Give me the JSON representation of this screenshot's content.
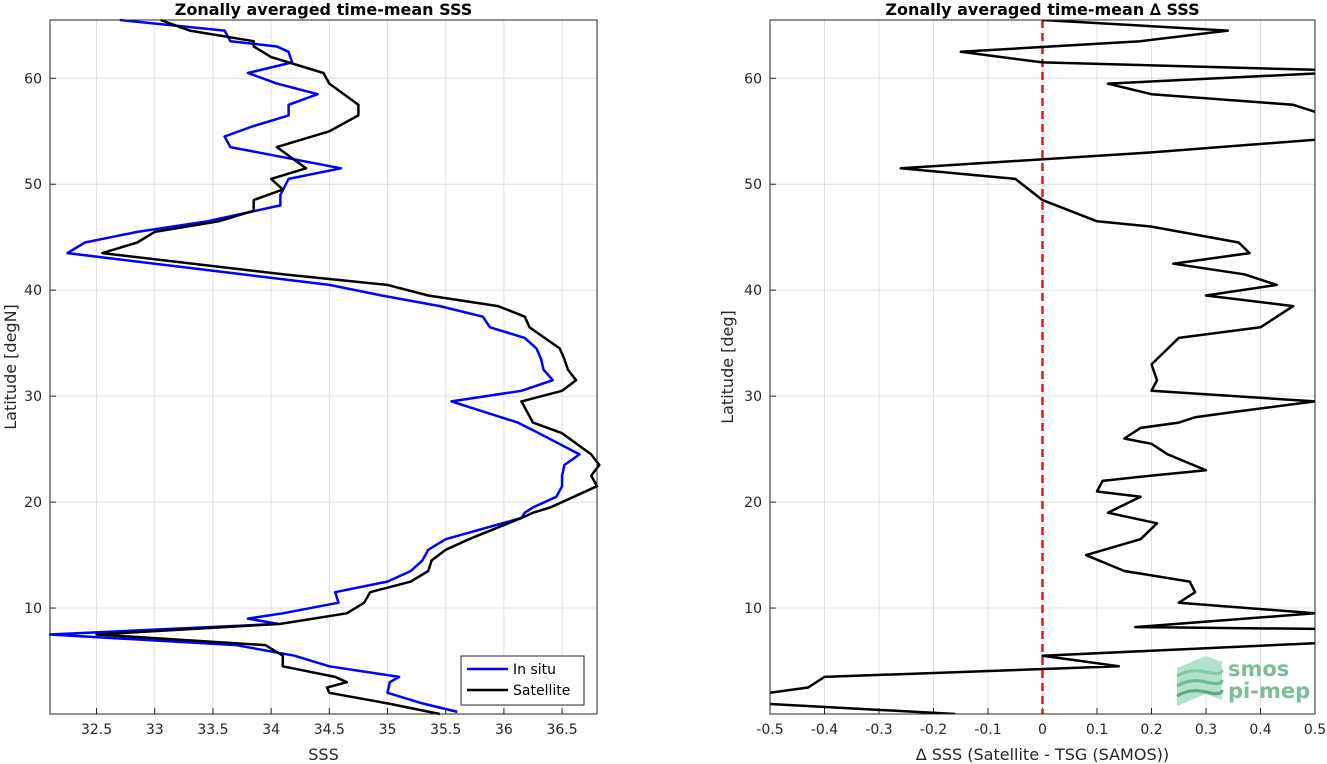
{
  "chart_data": [
    {
      "type": "line",
      "title": "Zonally averaged time-mean SSS",
      "xlabel": "SSS",
      "ylabel": "Latitude [degN]",
      "xlim": [
        32.1,
        36.8
      ],
      "ylim": [
        0,
        65.5
      ],
      "xticks": [
        32.5,
        33,
        33.5,
        34,
        34.5,
        35,
        35.5,
        36,
        36.5
      ],
      "yticks": [
        10,
        20,
        30,
        40,
        50,
        60
      ],
      "grid": true,
      "legend": "bottom-right",
      "series": [
        {
          "name": "In situ",
          "color": "#0000ff",
          "points": [
            [
              35.6,
              0.2
            ],
            [
              35.3,
              1.0
            ],
            [
              35.0,
              2.0
            ],
            [
              35.02,
              3.0
            ],
            [
              35.1,
              3.5
            ],
            [
              34.5,
              4.5
            ],
            [
              34.2,
              5.5
            ],
            [
              33.7,
              6.5
            ],
            [
              32.1,
              7.5
            ],
            [
              34.06,
              8.5
            ],
            [
              33.8,
              9.0
            ],
            [
              34.1,
              9.5
            ],
            [
              34.58,
              10.5
            ],
            [
              34.55,
              11.5
            ],
            [
              35.0,
              12.5
            ],
            [
              35.2,
              13.5
            ],
            [
              35.3,
              14.5
            ],
            [
              35.35,
              15.5
            ],
            [
              35.5,
              16.5
            ],
            [
              36.15,
              18.5
            ],
            [
              36.18,
              19.0
            ],
            [
              36.25,
              19.5
            ],
            [
              36.45,
              20.5
            ],
            [
              36.5,
              21.5
            ],
            [
              36.5,
              22.5
            ],
            [
              36.52,
              23.5
            ],
            [
              36.65,
              24.5
            ],
            [
              36.3,
              26.5
            ],
            [
              36.12,
              27.5
            ],
            [
              35.55,
              29.5
            ],
            [
              36.15,
              30.5
            ],
            [
              36.42,
              31.5
            ],
            [
              36.34,
              32.5
            ],
            [
              36.32,
              33.5
            ],
            [
              36.28,
              34.5
            ],
            [
              36.18,
              35.5
            ],
            [
              35.88,
              36.5
            ],
            [
              35.82,
              37.5
            ],
            [
              35.45,
              38.5
            ],
            [
              34.95,
              39.5
            ],
            [
              34.5,
              40.5
            ],
            [
              33.75,
              41.5
            ],
            [
              32.25,
              43.5
            ],
            [
              32.4,
              44.5
            ],
            [
              32.85,
              45.5
            ],
            [
              33.45,
              46.5
            ],
            [
              34.08,
              48.0
            ],
            [
              34.08,
              49.0
            ],
            [
              34.15,
              50.5
            ],
            [
              34.6,
              51.5
            ],
            [
              33.65,
              53.5
            ],
            [
              33.6,
              54.5
            ],
            [
              33.85,
              55.5
            ],
            [
              34.15,
              56.5
            ],
            [
              34.15,
              57.5
            ],
            [
              34.4,
              58.5
            ],
            [
              34.05,
              59.5
            ],
            [
              33.8,
              60.5
            ],
            [
              34.18,
              61.5
            ],
            [
              34.15,
              62.5
            ],
            [
              34.05,
              63.0
            ],
            [
              33.65,
              63.5
            ],
            [
              33.6,
              64.5
            ],
            [
              32.7,
              65.5
            ]
          ]
        },
        {
          "name": "Satellite",
          "color": "#000000",
          "points": [
            [
              35.45,
              0.0
            ],
            [
              35.0,
              1.0
            ],
            [
              34.5,
              2.0
            ],
            [
              34.48,
              2.5
            ],
            [
              34.65,
              3.0
            ],
            [
              34.55,
              3.5
            ],
            [
              34.1,
              4.5
            ],
            [
              34.1,
              5.5
            ],
            [
              33.95,
              6.5
            ],
            [
              32.5,
              7.5
            ],
            [
              34.08,
              8.5
            ],
            [
              34.65,
              9.5
            ],
            [
              34.8,
              10.5
            ],
            [
              34.85,
              11.5
            ],
            [
              35.2,
              12.5
            ],
            [
              35.35,
              13.5
            ],
            [
              35.38,
              14.5
            ],
            [
              35.5,
              15.5
            ],
            [
              35.7,
              16.5
            ],
            [
              36.15,
              18.5
            ],
            [
              36.25,
              19.0
            ],
            [
              36.4,
              19.5
            ],
            [
              36.6,
              20.5
            ],
            [
              36.8,
              21.5
            ],
            [
              36.75,
              22.5
            ],
            [
              36.82,
              23.5
            ],
            [
              36.75,
              24.5
            ],
            [
              36.5,
              26.5
            ],
            [
              36.25,
              27.5
            ],
            [
              36.15,
              29.5
            ],
            [
              36.5,
              30.5
            ],
            [
              36.62,
              31.5
            ],
            [
              36.55,
              32.5
            ],
            [
              36.52,
              33.5
            ],
            [
              36.48,
              34.5
            ],
            [
              36.35,
              35.5
            ],
            [
              36.22,
              36.5
            ],
            [
              36.18,
              37.5
            ],
            [
              35.95,
              38.5
            ],
            [
              35.35,
              39.5
            ],
            [
              35.0,
              40.5
            ],
            [
              34.1,
              41.5
            ],
            [
              32.55,
              43.5
            ],
            [
              32.85,
              44.5
            ],
            [
              33.0,
              45.5
            ],
            [
              33.55,
              46.5
            ],
            [
              33.85,
              47.5
            ],
            [
              33.85,
              48.5
            ],
            [
              34.1,
              49.5
            ],
            [
              34.0,
              50.5
            ],
            [
              34.3,
              51.5
            ],
            [
              34.05,
              53.5
            ],
            [
              34.5,
              55.0
            ],
            [
              34.75,
              56.5
            ],
            [
              34.75,
              57.5
            ],
            [
              34.5,
              59.5
            ],
            [
              34.45,
              60.5
            ],
            [
              34.0,
              62.0
            ],
            [
              33.85,
              63.0
            ],
            [
              33.85,
              63.5
            ],
            [
              33.3,
              64.5
            ],
            [
              33.05,
              65.5
            ]
          ]
        }
      ]
    },
    {
      "type": "line",
      "title": "Zonally averaged time-mean ∆ SSS",
      "xlabel": "∆ SSS (Satellite - TSG (SAMOS))",
      "ylabel": "Latitude [deg]",
      "xlim": [
        -0.5,
        0.5
      ],
      "ylim": [
        0,
        65.5
      ],
      "xticks": [
        -0.5,
        -0.4,
        -0.3,
        -0.2,
        -0.1,
        0,
        0.1,
        0.2,
        0.3,
        0.4,
        0.5
      ],
      "yticks": [
        10,
        20,
        30,
        40,
        50,
        60
      ],
      "grid": true,
      "reference_line": {
        "x": 0,
        "color": "#e41a1c",
        "style": "dashed"
      },
      "series": [
        {
          "color": "#000000",
          "points": [
            [
              -0.16,
              0.0
            ],
            [
              -0.52,
              1.0
            ],
            [
              -0.5,
              2.0
            ],
            [
              -0.43,
              2.5
            ],
            [
              -0.4,
              3.5
            ],
            [
              0.14,
              4.5
            ],
            [
              0.0,
              5.5
            ],
            [
              0.55,
              6.8
            ],
            [
              0.56,
              8.0
            ],
            [
              0.17,
              8.2
            ],
            [
              0.5,
              9.5
            ],
            [
              0.25,
              10.5
            ],
            [
              0.28,
              11.5
            ],
            [
              0.27,
              12.5
            ],
            [
              0.15,
              13.5
            ],
            [
              0.08,
              15.0
            ],
            [
              0.18,
              16.5
            ],
            [
              0.21,
              18.0
            ],
            [
              0.12,
              19.0
            ],
            [
              0.18,
              20.5
            ],
            [
              0.1,
              21.0
            ],
            [
              0.11,
              22.0
            ],
            [
              0.2,
              22.5
            ],
            [
              0.3,
              23.0
            ],
            [
              0.23,
              24.5
            ],
            [
              0.2,
              25.5
            ],
            [
              0.15,
              26.0
            ],
            [
              0.18,
              27.0
            ],
            [
              0.25,
              27.5
            ],
            [
              0.28,
              28.0
            ],
            [
              0.35,
              28.5
            ],
            [
              0.5,
              29.5
            ],
            [
              0.2,
              30.5
            ],
            [
              0.21,
              31.5
            ],
            [
              0.2,
              33.0
            ],
            [
              0.25,
              35.5
            ],
            [
              0.4,
              36.5
            ],
            [
              0.46,
              38.5
            ],
            [
              0.3,
              39.5
            ],
            [
              0.43,
              40.5
            ],
            [
              0.37,
              41.5
            ],
            [
              0.24,
              42.5
            ],
            [
              0.38,
              43.5
            ],
            [
              0.36,
              44.5
            ],
            [
              0.2,
              46.0
            ],
            [
              0.1,
              46.5
            ],
            [
              0.05,
              47.5
            ],
            [
              0.0,
              48.5
            ],
            [
              -0.05,
              50.5
            ],
            [
              -0.26,
              51.5
            ],
            [
              0.2,
              53.0
            ],
            [
              0.5,
              54.2
            ],
            [
              0.52,
              56.5
            ],
            [
              0.46,
              57.5
            ],
            [
              0.2,
              58.5
            ],
            [
              0.12,
              59.5
            ],
            [
              0.52,
              60.5
            ],
            [
              0.5,
              60.8
            ],
            [
              0.0,
              61.5
            ],
            [
              -0.15,
              62.5
            ],
            [
              0.18,
              63.5
            ],
            [
              0.34,
              64.5
            ],
            [
              0.0,
              65.5
            ]
          ]
        }
      ]
    }
  ],
  "logo": {
    "line1": "smos",
    "line2": "pi-mep"
  }
}
